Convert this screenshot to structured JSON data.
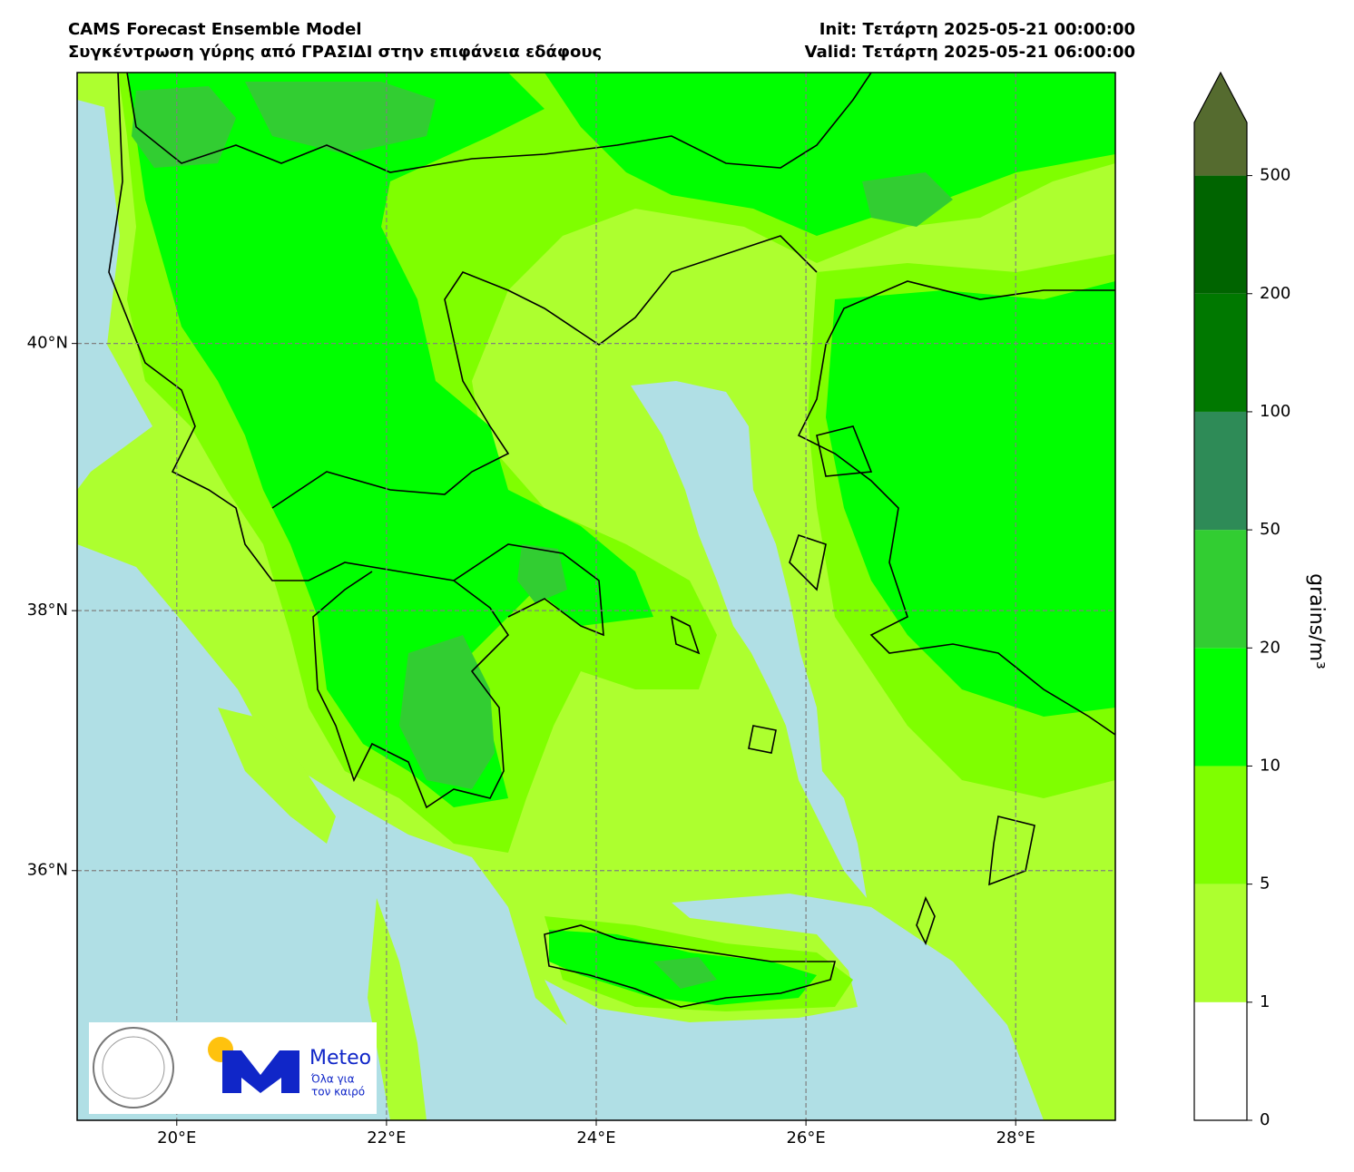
{
  "header": {
    "title": "CAMS Forecast Ensemble Model",
    "subtitle": "Συγκέντρωση γύρης από ΓΡΑΣΙΔΙ στην επιφάνεια εδάφους",
    "init": "Init: Τετάρτη 2025-05-21 00:00:00",
    "valid": "Valid: Τετάρτη 2025-05-21 06:00:00"
  },
  "map": {
    "projection": "mercator",
    "xlim": [
      19.05,
      28.95
    ],
    "ylim": [
      34.03,
      41.97
    ],
    "xticks": [
      {
        "value": 20,
        "label": "20°E"
      },
      {
        "value": 22,
        "label": "22°E"
      },
      {
        "value": 24,
        "label": "24°E"
      },
      {
        "value": 26,
        "label": "26°E"
      },
      {
        "value": 28,
        "label": "28°E"
      }
    ],
    "yticks": [
      {
        "value": 36,
        "label": "36°N"
      },
      {
        "value": 38,
        "label": "38°N"
      },
      {
        "value": 40,
        "label": "40°N"
      }
    ],
    "grid": true,
    "sea_color": "#b0dfe5"
  },
  "colorbar": {
    "label": "grains/m³",
    "ticks": [
      0,
      1,
      5,
      10,
      20,
      50,
      100,
      200,
      500
    ],
    "colors": [
      "#ffffff",
      "#adff2f",
      "#7fff00",
      "#00ff00",
      "#32cd32",
      "#2e8b57",
      "#007800",
      "#006400"
    ],
    "extend_color": "#556b2f"
  },
  "logo": {
    "name": "Meteo",
    "tagline": [
      "Όλα για",
      "τον καιρό"
    ]
  }
}
